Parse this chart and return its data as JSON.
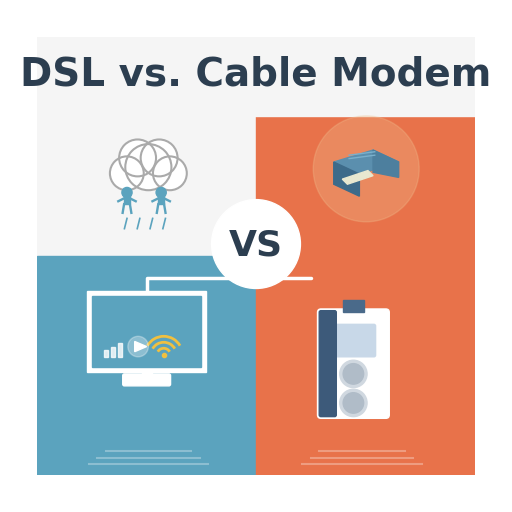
{
  "title": "DSL vs. Cable Modem",
  "title_color": "#2c3e50",
  "title_fontsize": 28,
  "bg_white": "#f5f5f5",
  "bg_orange": "#e8724a",
  "bg_blue": "#5ba3be",
  "vs_circle_color": "#ffffff",
  "vs_text_color": "#2c3e50",
  "icon_color_blue": "#5ba3be",
  "icon_color_white": "#ffffff",
  "icon_color_dark": "#2d4a6b",
  "icon_color_orange_accent": "#e8724a",
  "icon_color_yellow": "#f0c040"
}
